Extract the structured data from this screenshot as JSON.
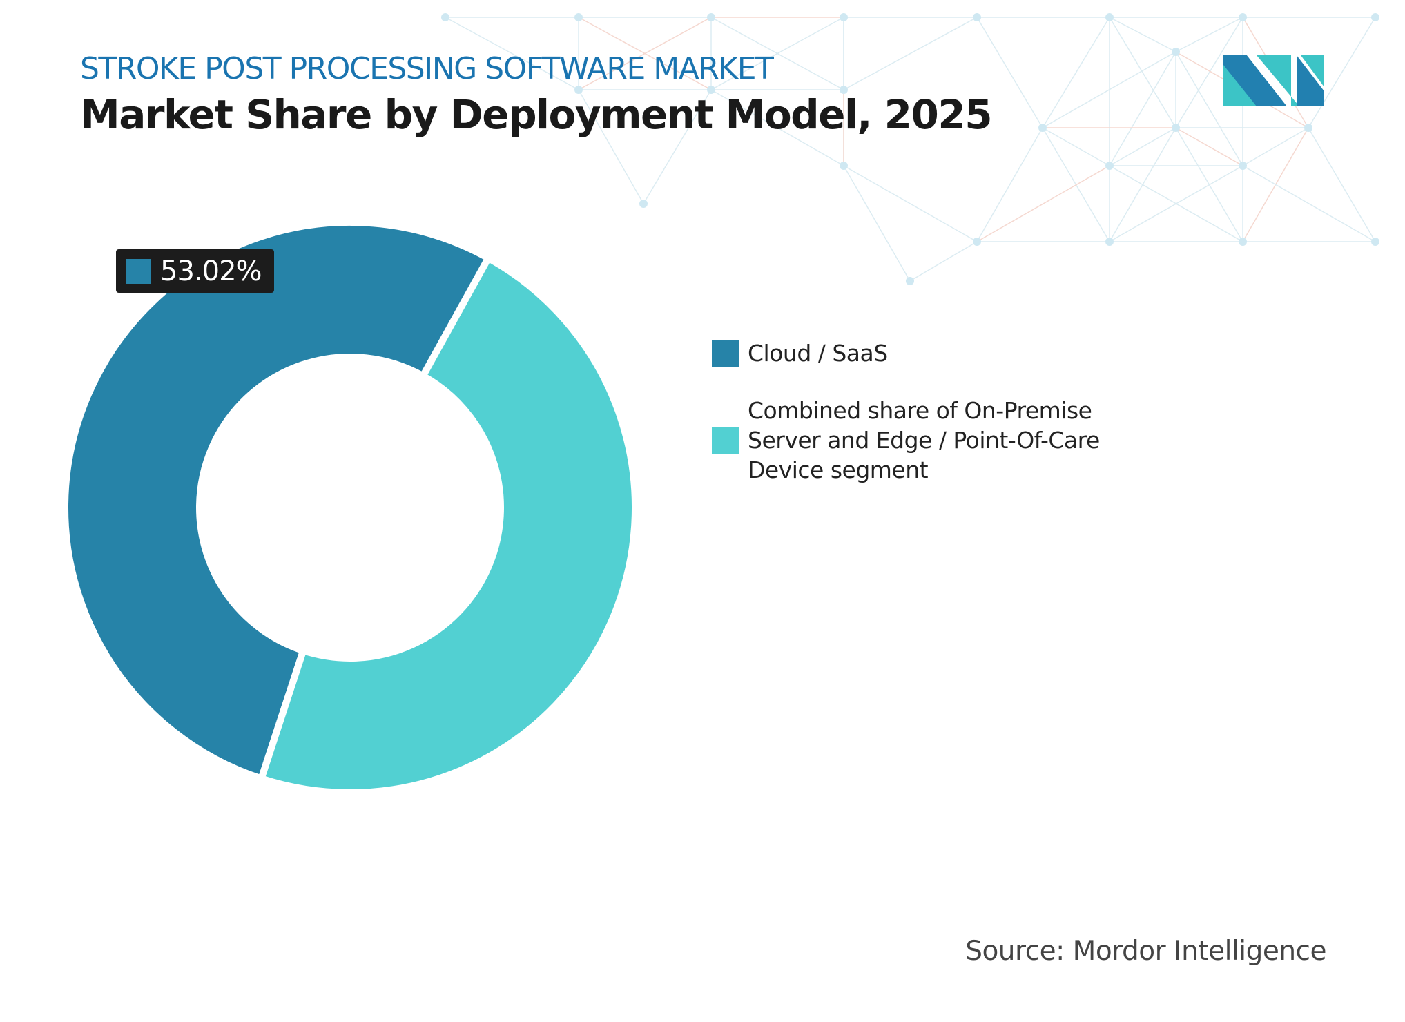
{
  "header": {
    "subtitle": "STROKE POST PROCESSING SOFTWARE MARKET",
    "title": "Market Share by Deployment Model, 2025"
  },
  "chart_data": {
    "type": "pie",
    "subtype": "donut",
    "categories": [
      "Cloud / SaaS",
      "Combined share of On-Premise Server and Edge / Point-Of-Care Device segment"
    ],
    "values": [
      53.02,
      46.98
    ],
    "colors": [
      "#2683a8",
      "#52d0d2"
    ],
    "data_labels": [
      "53.02%"
    ],
    "legend_position": "right"
  },
  "source": "Source: Mordor Intelligence",
  "logo": {
    "name": "mordor-intelligence-logo",
    "colors": [
      "#2280b0",
      "#3cc4c6"
    ]
  }
}
